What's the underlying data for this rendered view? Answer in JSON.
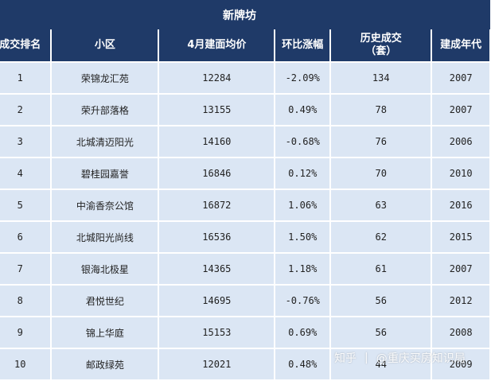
{
  "table": {
    "title": "新牌坊",
    "headers": [
      "成交排名",
      "小区",
      "4月建面均价",
      "环比涨幅",
      "历史成交",
      "（套）",
      "建成年代"
    ],
    "rows": [
      [
        "1",
        "荣锦龙汇苑",
        "12284",
        "-2.09%",
        "134",
        "2007"
      ],
      [
        "2",
        "荣升部落格",
        "13155",
        "0.49%",
        "78",
        "2007"
      ],
      [
        "3",
        "北城清迈阳光",
        "14160",
        "-0.68%",
        "76",
        "2006"
      ],
      [
        "4",
        "碧桂园嘉誉",
        "16846",
        "0.12%",
        "70",
        "2010"
      ],
      [
        "5",
        "中渝香奈公馆",
        "16872",
        "1.06%",
        "63",
        "2016"
      ],
      [
        "6",
        "北城阳光尚线",
        "16536",
        "1.50%",
        "62",
        "2015"
      ],
      [
        "7",
        "银海北极星",
        "14365",
        "1.18%",
        "61",
        "2007"
      ],
      [
        "8",
        "君悦世纪",
        "14695",
        "-0.76%",
        "56",
        "2012"
      ],
      [
        "9",
        "锦上华庭",
        "15153",
        "0.69%",
        "56",
        "2008"
      ],
      [
        "10",
        "邮政绿苑",
        "12021",
        "0.48%",
        "44",
        "2009"
      ]
    ]
  },
  "watermark": {
    "site": "知乎",
    "author": "@重庆买房知识局"
  }
}
